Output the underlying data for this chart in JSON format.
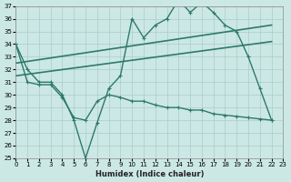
{
  "xlabel": "Humidex (Indice chaleur)",
  "bg_color": "#cce8e4",
  "grid_color": "#aaccca",
  "line_color": "#2d7a6a",
  "ylim": [
    25,
    37
  ],
  "xlim": [
    0,
    23
  ],
  "yticks": [
    25,
    26,
    27,
    28,
    29,
    30,
    31,
    32,
    33,
    34,
    35,
    36,
    37
  ],
  "xticks": [
    0,
    1,
    2,
    3,
    4,
    5,
    6,
    7,
    8,
    9,
    10,
    11,
    12,
    13,
    14,
    15,
    16,
    17,
    18,
    19,
    20,
    21,
    22,
    23
  ],
  "series": [
    {
      "x": [
        0,
        1,
        2,
        3,
        4,
        5,
        6,
        7,
        8,
        9,
        10,
        11,
        12,
        13,
        14,
        15,
        16,
        17,
        18,
        19,
        20,
        21,
        22
      ],
      "y": [
        34,
        32,
        31,
        31,
        30,
        28,
        25,
        27.8,
        30.5,
        31.5,
        36,
        34.5,
        35.5,
        36,
        37.5,
        36.5,
        37.3,
        36.5,
        35.5,
        35.0,
        33,
        30.5,
        28
      ],
      "marker": true,
      "lw": 1.0
    },
    {
      "x": [
        0,
        22
      ],
      "y": [
        32.5,
        35.5
      ],
      "marker": false,
      "lw": 1.2
    },
    {
      "x": [
        0,
        22
      ],
      "y": [
        31.5,
        34.2
      ],
      "marker": false,
      "lw": 1.2
    },
    {
      "x": [
        0,
        1,
        2,
        3,
        4,
        5,
        6,
        7,
        8,
        9,
        10,
        11,
        12,
        13,
        14,
        15,
        16,
        17,
        18,
        19,
        20,
        21,
        22
      ],
      "y": [
        34,
        31,
        30.8,
        30.8,
        29.8,
        28.2,
        28.0,
        29.5,
        30.0,
        29.8,
        29.5,
        29.5,
        29.2,
        29.0,
        29.0,
        28.8,
        28.8,
        28.5,
        28.4,
        28.3,
        28.2,
        28.1,
        28.0
      ],
      "marker": true,
      "lw": 1.0
    }
  ]
}
